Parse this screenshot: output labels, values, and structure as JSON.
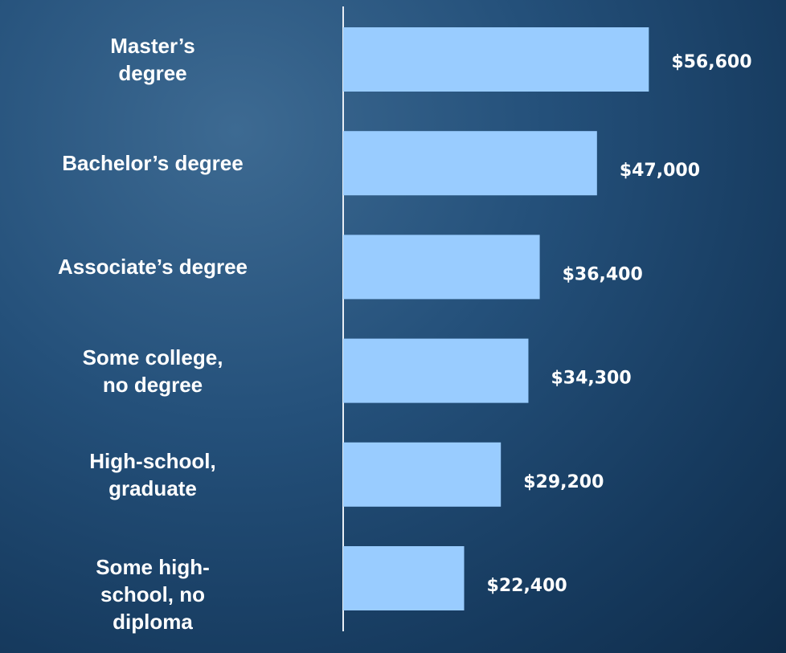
{
  "chart_data": {
    "type": "barh",
    "categories": [
      "Master’s\ndegree",
      "Bachelor’s degree",
      "Associate’s degree",
      "Some college,\nno degree",
      "High-school,\ngraduate",
      "Some high-\nschool, no\ndiploma"
    ],
    "values": [
      56600,
      47000,
      36400,
      34300,
      29200,
      22400
    ],
    "value_labels": [
      "$56,600",
      "$47,000",
      "$36,400",
      "$34,300",
      "$29,200",
      "$22,400"
    ],
    "color": "#99ccff",
    "xlim": [
      0,
      82000
    ]
  }
}
